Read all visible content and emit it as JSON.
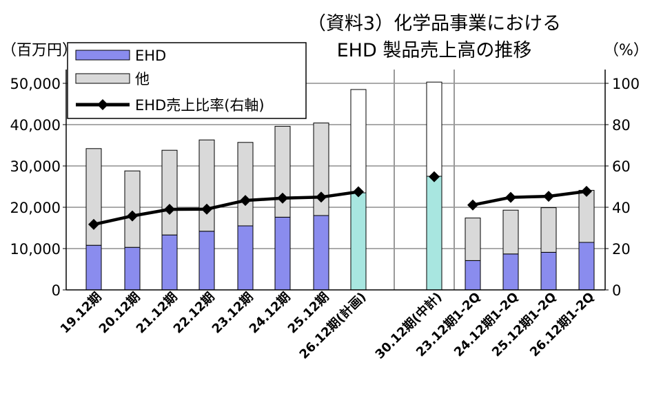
{
  "chart_data": {
    "type": "bar",
    "title_line1": "（資料3）化学品事業における",
    "title_line2": "EHD 製品売上高の推移",
    "left_unit": "（百万円）",
    "right_unit": "（%）",
    "y_left_ticks": [
      "0",
      "10,000",
      "20,000",
      "30,000",
      "40,000",
      "50,000"
    ],
    "y_right_ticks": [
      "0",
      "20",
      "40",
      "60",
      "80",
      "100"
    ],
    "ylim_left": [
      0,
      50000
    ],
    "ylim_right": [
      0,
      100
    ],
    "grid": true,
    "legend_position": "top-left",
    "categories": [
      "19.12期",
      "20.12期",
      "21.12期",
      "22.12期",
      "23.12期",
      "24.12期",
      "25.12期",
      "26.12期(計画)",
      "30.12期(中計)",
      "23.12期1-2Q",
      "24.12期1-2Q",
      "25.12期1-2Q",
      "26.12期1-2Q"
    ],
    "groups": [
      [
        0,
        1,
        2,
        3,
        4,
        5,
        6,
        7
      ],
      [
        8
      ],
      [
        9,
        10,
        11,
        12
      ]
    ],
    "series": [
      {
        "name": "EHD",
        "kind": "bar",
        "axis": "left",
        "values": [
          10800,
          10300,
          13300,
          14200,
          15500,
          17600,
          18000,
          23500,
          27500,
          7100,
          8700,
          9100,
          11500
        ]
      },
      {
        "name": "他",
        "kind": "bar",
        "axis": "left",
        "values": [
          23400,
          18500,
          20500,
          22100,
          20200,
          22000,
          22400,
          25000,
          22800,
          10300,
          10600,
          10800,
          12600
        ]
      },
      {
        "name": "EHD売上比率(右軸)",
        "kind": "line",
        "axis": "right",
        "values": [
          31.7,
          35.8,
          39.0,
          39.1,
          43.3,
          44.4,
          44.9,
          47.5,
          54.8,
          41.1,
          44.8,
          45.3,
          47.7
        ]
      }
    ],
    "colors": {
      "ehd": "#8a8cee",
      "ehd_forecast": "#a8e6e0",
      "other": "#d9d9d9",
      "line": "#000000",
      "grid": "#555555",
      "divider": "#999999"
    }
  }
}
